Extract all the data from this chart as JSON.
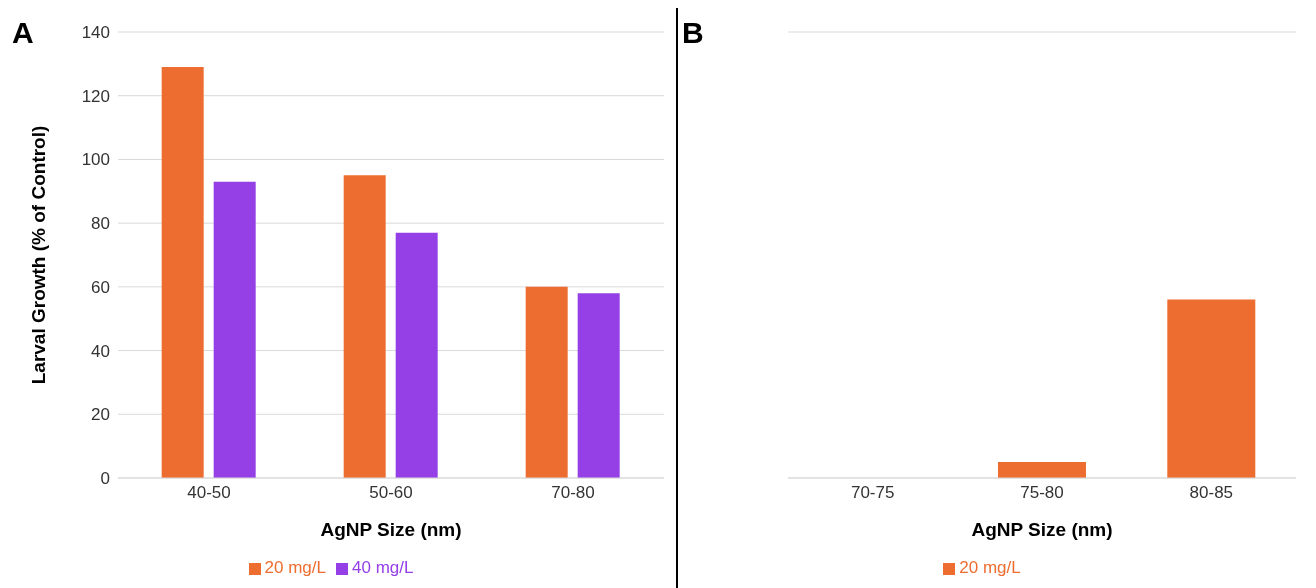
{
  "chart_data": [
    {
      "type": "bar",
      "title": "A",
      "xlabel": "AgNP Size (nm)",
      "ylabel": "Larval Growth (% of Control)",
      "categories": [
        "40-50",
        "50-60",
        "70-80"
      ],
      "series": [
        {
          "name": "20 mg/L",
          "color": "#ed6d31",
          "values": [
            129,
            95,
            60
          ]
        },
        {
          "name": "40 mg/L",
          "color": "#9440e6",
          "values": [
            93,
            77,
            58
          ]
        }
      ],
      "ylim": [
        0,
        140
      ],
      "yticks": [
        0,
        20,
        40,
        60,
        80,
        100,
        120,
        140
      ],
      "grid": "y",
      "legend": "bottom"
    },
    {
      "type": "bar",
      "title": "B",
      "xlabel": "AgNP Size (nm)",
      "categories": [
        "70-75",
        "75-80",
        "80-85"
      ],
      "series": [
        {
          "name": "20 mg/L",
          "color": "#ed6d31",
          "values": [
            null,
            5,
            56
          ]
        }
      ],
      "ylim": [
        0,
        140
      ],
      "yticks": [
        0,
        20,
        40,
        60,
        80,
        100,
        120,
        140
      ],
      "grid": "y",
      "legend": "bottom",
      "tick_labels": "x"
    }
  ]
}
